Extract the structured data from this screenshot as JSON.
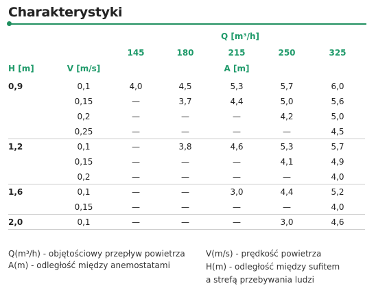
{
  "header": {
    "title": "Charakterystyki"
  },
  "table": {
    "q_label": "Q [m³/h]",
    "q_values": [
      "145",
      "180",
      "215",
      "250",
      "325"
    ],
    "h_label": "H [m]",
    "v_label": "V [m/s]",
    "a_label": "A [m]",
    "groups": [
      {
        "h": "0,9",
        "rows": [
          {
            "v": "0,1",
            "a": [
              "4,0",
              "4,5",
              "5,3",
              "5,7",
              "6,0"
            ]
          },
          {
            "v": "0,15",
            "a": [
              "—",
              "3,7",
              "4,4",
              "5,0",
              "5,6"
            ]
          },
          {
            "v": "0,2",
            "a": [
              "—",
              "—",
              "—",
              "4,2",
              "5,0"
            ]
          },
          {
            "v": "0,25",
            "a": [
              "—",
              "—",
              "—",
              "—",
              "4,5"
            ]
          }
        ]
      },
      {
        "h": "1,2",
        "rows": [
          {
            "v": "0,1",
            "a": [
              "—",
              "3,8",
              "4,6",
              "5,3",
              "5,7"
            ]
          },
          {
            "v": "0,15",
            "a": [
              "—",
              "—",
              "—",
              "4,1",
              "4,9"
            ]
          },
          {
            "v": "0,2",
            "a": [
              "—",
              "—",
              "—",
              "—",
              "4,0"
            ]
          }
        ]
      },
      {
        "h": "1,6",
        "rows": [
          {
            "v": "0,1",
            "a": [
              "—",
              "—",
              "3,0",
              "4,4",
              "5,2"
            ]
          },
          {
            "v": "0,15",
            "a": [
              "—",
              "—",
              "—",
              "—",
              "4,0"
            ]
          }
        ]
      },
      {
        "h": "2,0",
        "rows": [
          {
            "v": "0,1",
            "a": [
              "—",
              "—",
              "—",
              "3,0",
              "4,6"
            ]
          }
        ]
      }
    ]
  },
  "notes": {
    "left": [
      "Q(m³/h) - objętościowy przepływ powietrza",
      "A(m) - odległość między anemostatami"
    ],
    "right": [
      "V(m/s) - prędkość powietrza",
      "H(m) - odległość między sufitem",
      "a strefą przebywania ludzi"
    ]
  }
}
